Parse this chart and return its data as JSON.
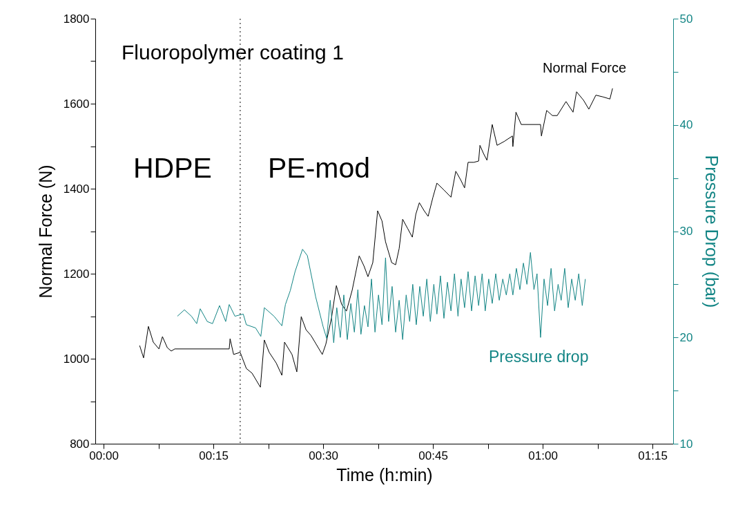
{
  "chart_data": {
    "type": "line",
    "xlabel": "Time (h:min)",
    "ylabel": "Normal Force (N)",
    "y2label": "Pressure Drop (bar)",
    "annotations": [
      "Fluoropolymer coating 1",
      "HDPE",
      "PE-mod"
    ],
    "xlim": [
      -0.019,
      1.297
    ],
    "xticks": [
      {
        "value": 0,
        "label": "00:00"
      },
      {
        "value": 0.125,
        "label": null
      },
      {
        "value": 0.25,
        "label": "00:15"
      },
      {
        "value": 0.375,
        "label": null
      },
      {
        "value": 0.5,
        "label": "00:30"
      },
      {
        "value": 0.625,
        "label": null
      },
      {
        "value": 0.75,
        "label": "00:45"
      },
      {
        "value": 0.875,
        "label": null
      },
      {
        "value": 1,
        "label": "01:00"
      },
      {
        "value": 1.125,
        "label": null
      },
      {
        "value": 1.25,
        "label": "01:15"
      }
    ],
    "ylim": [
      800,
      1800
    ],
    "yticks": [
      800,
      {
        "value": 900,
        "label": null
      },
      1000,
      {
        "value": 1100,
        "label": null
      },
      1200,
      {
        "value": 1300,
        "label": null
      },
      1400,
      {
        "value": 1500,
        "label": null
      },
      1600,
      {
        "value": 1700,
        "label": null
      },
      1800
    ],
    "y2lim": [
      10,
      50
    ],
    "y2ticks": [
      10,
      {
        "value": 15,
        "label": null
      },
      20,
      {
        "value": 25,
        "label": null
      },
      30,
      {
        "value": 35,
        "label": null
      },
      40,
      {
        "value": 45,
        "label": null
      },
      50
    ],
    "grid": false,
    "marker": "none",
    "line_style": "solid",
    "ref_lines": [
      {
        "axis": "x",
        "value": 0.311,
        "color": "#808080",
        "line_style": "dotted"
      }
    ],
    "series": [
      {
        "name": "Normal Force",
        "color": "#000000",
        "x": [
          0.082,
          0.091,
          0.102,
          0.113,
          0.126,
          0.134,
          0.145,
          0.154,
          0.162,
          0.286,
          0.288,
          0.296,
          0.311,
          0.325,
          0.338,
          0.357,
          0.366,
          0.377,
          0.393,
          0.406,
          0.412,
          0.429,
          0.44,
          0.45,
          0.461,
          0.472,
          0.483,
          0.498,
          0.506,
          0.519,
          0.53,
          0.542,
          0.553,
          0.566,
          0.582,
          0.593,
          0.602,
          0.613,
          0.624,
          0.634,
          0.642,
          0.656,
          0.665,
          0.673,
          0.681,
          0.692,
          0.703,
          0.711,
          0.719,
          0.73,
          0.739,
          0.75,
          0.759,
          0.775,
          0.791,
          0.802,
          0.813,
          0.822,
          0.83,
          0.843,
          0.854,
          0.857,
          0.865,
          0.873,
          0.885,
          0.896,
          0.912,
          0.931,
          0.932,
          0.939,
          0.951,
          0.995,
          0.997,
          1.009,
          1.022,
          1.033,
          1.053,
          1.069,
          1.077,
          1.093,
          1.105,
          1.121,
          1.137,
          1.153,
          1.159
        ],
        "values": [
          1031,
          1002,
          1076,
          1039,
          1023,
          1052,
          1026,
          1018,
          1023,
          1023,
          1047,
          1010,
          1015,
          977,
          966,
          933,
          1044,
          1015,
          990,
          961,
          1039,
          1010,
          969,
          1099,
          1068,
          1055,
          1036,
          1010,
          1034,
          1096,
          1172,
          1128,
          1112,
          1161,
          1242,
          1218,
          1193,
          1226,
          1348,
          1324,
          1275,
          1226,
          1221,
          1259,
          1328,
          1307,
          1286,
          1340,
          1367,
          1348,
          1335,
          1380,
          1413,
          1397,
          1380,
          1441,
          1421,
          1402,
          1462,
          1462,
          1465,
          1502,
          1483,
          1467,
          1551,
          1502,
          1511,
          1524,
          1499,
          1580,
          1551,
          1551,
          1524,
          1584,
          1572,
          1572,
          1605,
          1580,
          1628,
          1608,
          1587,
          1620,
          1616,
          1611,
          1636
        ]
      },
      {
        "name": "Pressure drop",
        "color": "#138585",
        "axis": "y2",
        "x": [
          0.168,
          0.184,
          0.2,
          0.212,
          0.22,
          0.236,
          0.248,
          0.264,
          0.278,
          0.286,
          0.299,
          0.318,
          0.325,
          0.346,
          0.358,
          0.366,
          0.388,
          0.406,
          0.414,
          0.425,
          0.436,
          0.453,
          0.464,
          0.483,
          0.5,
          0.508,
          0.516,
          0.524,
          0.531,
          0.539,
          0.547,
          0.555,
          0.563,
          0.571,
          0.579,
          0.586,
          0.594,
          0.602,
          0.61,
          0.618,
          0.626,
          0.634,
          0.642,
          0.649,
          0.657,
          0.665,
          0.673,
          0.681,
          0.689,
          0.697,
          0.704,
          0.712,
          0.72,
          0.728,
          0.736,
          0.744,
          0.752,
          0.759,
          0.767,
          0.775,
          0.783,
          0.791,
          0.799,
          0.807,
          0.814,
          0.822,
          0.83,
          0.838,
          0.846,
          0.854,
          0.862,
          0.869,
          0.877,
          0.885,
          0.893,
          0.901,
          0.909,
          0.917,
          0.925,
          0.932,
          0.94,
          0.948,
          0.956,
          0.964,
          0.972,
          0.98,
          0.987,
          0.995,
          1.003,
          1.011,
          1.019,
          1.027,
          1.035,
          1.042,
          1.05,
          1.058,
          1.066,
          1.074,
          1.082,
          1.09,
          1.097
        ],
        "values": [
          22.0,
          22.6,
          22.0,
          21.3,
          22.7,
          21.5,
          21.3,
          23.0,
          21.5,
          23.1,
          22.0,
          22.2,
          21.2,
          20.9,
          20.1,
          22.8,
          22.0,
          21.1,
          23.1,
          24.4,
          26.2,
          28.3,
          27.7,
          23.8,
          21.0,
          19.9,
          23.5,
          19.5,
          22.8,
          20.0,
          24.0,
          19.8,
          23.2,
          20.5,
          24.5,
          20.3,
          23.0,
          21.0,
          25.5,
          20.5,
          24.0,
          21.2,
          27.5,
          21.5,
          24.8,
          20.5,
          23.5,
          19.8,
          24.0,
          21.5,
          25.0,
          21.2,
          24.8,
          22.0,
          25.5,
          21.5,
          25.0,
          22.2,
          25.8,
          21.8,
          25.2,
          22.5,
          26.0,
          22.0,
          25.5,
          22.8,
          26.2,
          22.5,
          25.8,
          23.0,
          26.0,
          22.5,
          25.5,
          23.2,
          26.0,
          23.5,
          25.5,
          24.0,
          26.0,
          24.0,
          26.5,
          24.5,
          27.0,
          25.0,
          28.0,
          24.5,
          26.0,
          20.0,
          25.5,
          23.0,
          26.5,
          22.5,
          25.0,
          23.5,
          26.5,
          22.8,
          25.5,
          23.5,
          26.0,
          23.0,
          25.5
        ]
      }
    ]
  }
}
